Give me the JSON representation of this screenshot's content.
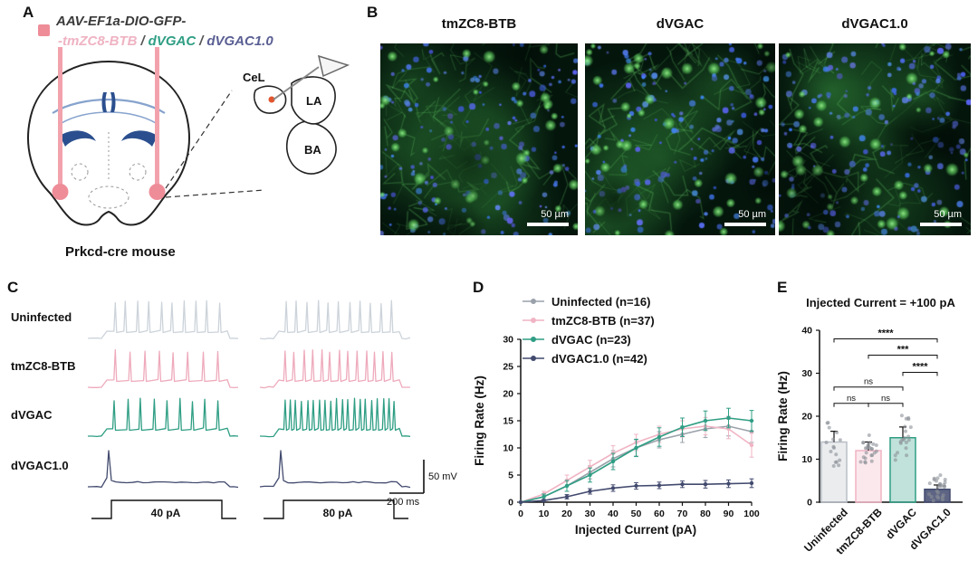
{
  "panelA": {
    "label": "A",
    "legend_marker_color": "#ee8d98",
    "title_line1": "AAV-EF1a-DIO-GFP-",
    "dash_prefix": "-",
    "constructs": [
      {
        "name": "tmZC8-BTB",
        "color": "#efb3c3"
      },
      {
        "name": "dVGAC",
        "color": "#2f9e84"
      },
      {
        "name": "dVGAC1.0",
        "color": "#5a5f93"
      }
    ],
    "separator": "/",
    "regions": {
      "cel": "CeL",
      "la": "LA",
      "ba": "BA"
    },
    "mouse_label": "Prkcd-cre mouse"
  },
  "panelB": {
    "label": "B",
    "images": [
      {
        "title": "tmZC8-BTB",
        "scale_label": "50 µm"
      },
      {
        "title": "dVGAC",
        "scale_label": "50 µm"
      },
      {
        "title": "dVGAC1.0",
        "scale_label": "50 µm"
      }
    ]
  },
  "panelC": {
    "label": "C",
    "rows": [
      {
        "name": "Uninfected",
        "color": "#ccd3da",
        "spikes_40pA": 10,
        "spikes_80pA": 11
      },
      {
        "name": "tmZC8-BTB",
        "color": "#eeaabc",
        "spikes_40pA": 8,
        "spikes_80pA": 13
      },
      {
        "name": "dVGAC",
        "color": "#2f9e84",
        "spikes_40pA": 9,
        "spikes_80pA": 20
      },
      {
        "name": "dVGAC1.0",
        "color": "#424a6e",
        "spikes_40pA": 1,
        "spikes_80pA": 1
      }
    ],
    "pulse_labels": [
      "40 pA",
      "80 pA"
    ],
    "scalebar_voltage": "50 mV",
    "scalebar_time": "200 ms"
  },
  "panelD": {
    "label": "D"
  },
  "panelE": {
    "label": "E"
  },
  "chart_data": [
    {
      "type": "line",
      "panel": "D",
      "xlabel": "Injected Current (pA)",
      "ylabel": "Firing Rate (Hz)",
      "x": [
        0,
        10,
        20,
        30,
        40,
        50,
        60,
        70,
        80,
        90,
        100
      ],
      "xlim": [
        0,
        100
      ],
      "ylim": [
        0,
        30
      ],
      "yticks": [
        0,
        5,
        10,
        15,
        20,
        25,
        30
      ],
      "grid": false,
      "legend_position": "top-left-inside",
      "series": [
        {
          "name": "Uninfected (n=16)",
          "color": "#9aa1aa",
          "values": [
            0,
            1,
            3,
            5.5,
            8,
            10,
            11.5,
            12.5,
            13.5,
            14,
            13
          ],
          "errors": [
            0,
            0.5,
            1,
            1.2,
            1.5,
            1.5,
            1.5,
            1.5,
            1.6,
            1.8,
            2
          ]
        },
        {
          "name": "tmZC8-BTB (n=37)",
          "color": "#f0b4c4",
          "values": [
            0,
            1.5,
            4,
            6.5,
            9,
            11,
            12.5,
            13.5,
            14,
            13.5,
            10.5
          ],
          "errors": [
            0,
            0.5,
            1,
            1.2,
            1.4,
            1.5,
            1.5,
            1.5,
            1.6,
            1.8,
            2.2
          ]
        },
        {
          "name": "dVGAC (n=23)",
          "color": "#2f9e84",
          "values": [
            0,
            1,
            3,
            5,
            7.5,
            10,
            12,
            13.8,
            15,
            15.5,
            15
          ],
          "errors": [
            0,
            0.5,
            1,
            1.3,
            1.5,
            1.6,
            1.7,
            1.7,
            1.8,
            1.8,
            1.9
          ]
        },
        {
          "name": "dVGAC1.0 (n=42)",
          "color": "#424a6e",
          "values": [
            0,
            0.3,
            1,
            2,
            2.6,
            3,
            3.1,
            3.3,
            3.3,
            3.4,
            3.5
          ],
          "errors": [
            0,
            0.2,
            0.4,
            0.5,
            0.6,
            0.6,
            0.6,
            0.6,
            0.7,
            0.7,
            0.8
          ]
        }
      ]
    },
    {
      "type": "bar",
      "panel": "E",
      "title": "Injected Current = +100 pA",
      "ylabel": "Firing Rate (Hz)",
      "ylim": [
        0,
        40
      ],
      "yticks": [
        0,
        10,
        20,
        30,
        40
      ],
      "categories": [
        "Uninfected",
        "tmZC8-BTB",
        "dVGAC",
        "dVGAC1.0"
      ],
      "values": [
        14,
        12,
        15,
        3
      ],
      "errors": [
        2.5,
        2,
        2.5,
        1
      ],
      "colors": [
        "#b9bfc7",
        "#f0b4c4",
        "#2f9e84",
        "#424a6e"
      ],
      "significance": [
        {
          "between": [
            "Uninfected",
            "dVGAC1.0"
          ],
          "label": "****",
          "height": 38
        },
        {
          "between": [
            "tmZC8-BTB",
            "dVGAC1.0"
          ],
          "label": "***",
          "height": 34.2
        },
        {
          "between": [
            "dVGAC",
            "dVGAC1.0"
          ],
          "label": "****",
          "height": 30.2
        },
        {
          "between": [
            "Uninfected",
            "dVGAC"
          ],
          "label": "ns",
          "height": 26.8
        },
        {
          "between": [
            "Uninfected",
            "tmZC8-BTB"
          ],
          "label": "ns",
          "height": 23
        },
        {
          "between": [
            "tmZC8-BTB",
            "dVGAC"
          ],
          "label": "ns",
          "height": 23
        }
      ]
    }
  ]
}
